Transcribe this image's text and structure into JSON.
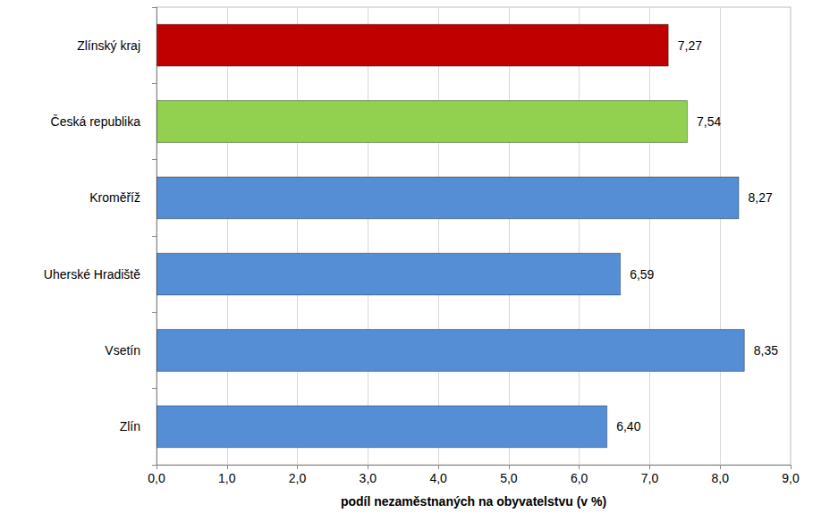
{
  "chart_data": {
    "type": "bar",
    "orientation": "horizontal",
    "x_label": "podíl nezaměstnaných na obyvatelstvu (v %)",
    "categories": [
      "Zlínský kraj",
      "Česká republika",
      "Kroměříž",
      "Uherské Hradiště",
      "Vsetín",
      "Zlín"
    ],
    "values": [
      7.27,
      7.54,
      8.27,
      6.59,
      8.35,
      6.4
    ],
    "value_labels": [
      "7,27",
      "7,54",
      "8,27",
      "6,59",
      "8,35",
      "6,40"
    ],
    "colors": [
      "#c00000",
      "#92d050",
      "#558ed5",
      "#558ed5",
      "#558ed5",
      "#558ed5"
    ],
    "xlim": [
      0,
      9
    ],
    "xticks": [
      {
        "value": 0,
        "label": "0,0"
      },
      {
        "value": 1,
        "label": "1,0"
      },
      {
        "value": 2,
        "label": "2,0"
      },
      {
        "value": 3,
        "label": "3,0"
      },
      {
        "value": 4,
        "label": "4,0"
      },
      {
        "value": 5,
        "label": "5,0"
      },
      {
        "value": 6,
        "label": "6,0"
      },
      {
        "value": 7,
        "label": "7,0"
      },
      {
        "value": 8,
        "label": "8,0"
      },
      {
        "value": 9,
        "label": "9,0"
      }
    ],
    "grid": true,
    "data_labels": true
  }
}
